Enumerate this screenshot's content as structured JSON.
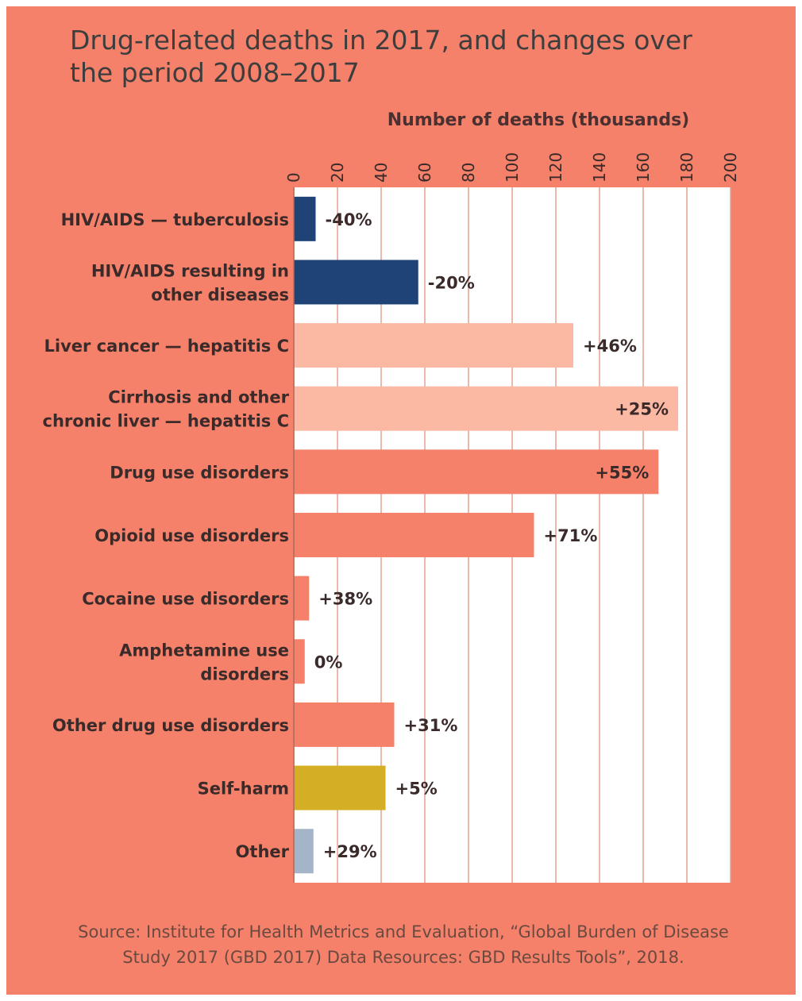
{
  "title": "Drug-related deaths in 2017, and changes over\nthe period 2008–2017",
  "source": "Source: Institute for Health Metrics and Evaluation, “Global Burden of Disease Study 2017 (GBD 2017) Data Resources: GBD Results Tools”, 2018.",
  "chart_data": {
    "type": "bar",
    "orientation": "horizontal",
    "title": "Drug-related deaths in 2017, and changes over the period 2008–2017",
    "xlabel": "Number of deaths (thousands)",
    "ylabel": "",
    "xlim": [
      0,
      200
    ],
    "xticks": [
      "0",
      "20",
      "40",
      "60",
      "80",
      "100",
      "120",
      "140",
      "160",
      "180",
      "200"
    ],
    "grid": true,
    "categories": [
      "HIV/AIDS — tuberculosis",
      "HIV/AIDS resulting in other diseases",
      "Liver cancer — hepatitis C",
      "Cirrhosis and other chronic liver — hepatitis C",
      "Drug use disorders",
      "Opioid use disorders",
      "Cocaine use disorders",
      "Amphetamine use disorders",
      "Other drug use disorders",
      "Self-harm",
      "Other"
    ],
    "category_lines": [
      [
        "HIV/AIDS — tuberculosis"
      ],
      [
        "HIV/AIDS resulting in",
        "other diseases"
      ],
      [
        "Liver cancer — hepatitis C"
      ],
      [
        "Cirrhosis and other",
        "chronic liver — hepatitis C"
      ],
      [
        "Drug use disorders"
      ],
      [
        "Opioid use disorders"
      ],
      [
        "Cocaine use disorders"
      ],
      [
        "Amphetamine use",
        "disorders"
      ],
      [
        "Other drug use disorders"
      ],
      [
        "Self-harm"
      ],
      [
        "Other"
      ]
    ],
    "values": [
      10,
      57,
      128,
      176,
      167,
      110,
      7,
      5,
      46,
      42,
      9
    ],
    "change_labels": [
      "-40%",
      "-20%",
      "+46%",
      "+25%",
      "+55%",
      "+71%",
      "+38%",
      "0%",
      "+31%",
      "+5%",
      "+29%"
    ],
    "bar_colors": [
      "#1f4377",
      "#1f4377",
      "#fbb9a4",
      "#fbb9a4",
      "#f5816a",
      "#f5816a",
      "#f5816a",
      "#f5816a",
      "#f5816a",
      "#d4ae24",
      "#a4b5c9"
    ]
  }
}
